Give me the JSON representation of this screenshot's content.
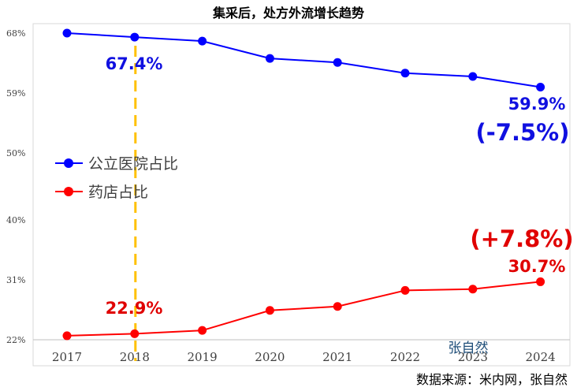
{
  "chart_data": {
    "type": "line",
    "title": "集采后，处方外流增长趋势",
    "x": [
      "2017",
      "2018",
      "2019",
      "2020",
      "2021",
      "2022",
      "2023",
      "2024"
    ],
    "ylim": [
      22,
      68
    ],
    "yticks": [
      "68%",
      "59%",
      "50%",
      "40%",
      "31%",
      "22%"
    ],
    "ytick_values": [
      68,
      59,
      50,
      40,
      31,
      22
    ],
    "grid": false,
    "legend_position": "left",
    "series": [
      {
        "name": "公立医院占比",
        "color": "#0000ff",
        "values": [
          68.0,
          67.4,
          66.8,
          64.2,
          63.6,
          62.0,
          61.5,
          59.9
        ]
      },
      {
        "name": "药店占比",
        "color": "#ff0000",
        "values": [
          22.6,
          22.9,
          23.4,
          26.4,
          27.0,
          29.4,
          29.6,
          30.7
        ]
      }
    ],
    "annotations": {
      "public_2018": "67.4%",
      "public_2024": "59.9%",
      "public_change": "(-7.5%)",
      "pharmacy_2018": "22.9%",
      "pharmacy_2024": "30.7%",
      "pharmacy_change": "(+7.8%)"
    },
    "highlight_year": "2018",
    "highlight_color": "#ffc000"
  },
  "watermark": "张自然",
  "source": "数据来源：米内网，张自然"
}
